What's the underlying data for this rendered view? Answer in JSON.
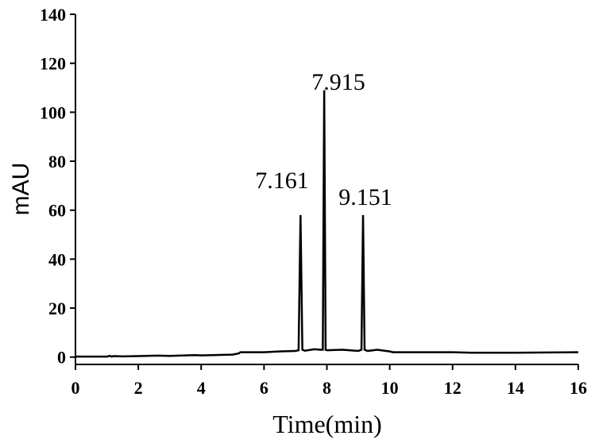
{
  "chart_data": {
    "type": "line",
    "xlabel": "Time(min)",
    "ylabel": "mAU",
    "annotations": [
      "7.161",
      "7.915",
      "9.151"
    ],
    "series": [
      {
        "color": "#000000",
        "x": [
          0,
          1.0,
          1.1,
          1.15,
          1.2,
          1.5,
          2.0,
          2.6,
          3.0,
          3.8,
          4.0,
          5.0,
          5.2,
          5.25,
          6.0,
          6.5,
          7.0,
          7.1,
          7.161,
          7.22,
          7.3,
          7.6,
          7.8,
          7.87,
          7.915,
          7.96,
          8.0,
          8.5,
          9.0,
          9.1,
          9.151,
          9.2,
          9.3,
          9.6,
          10.0,
          10.1,
          12.0,
          12.6,
          14.0,
          16.0
        ],
        "values": [
          0.2,
          0.2,
          0.5,
          0.2,
          0.4,
          0.3,
          0.4,
          0.6,
          0.5,
          0.8,
          0.7,
          1.0,
          1.5,
          2.0,
          2.0,
          2.3,
          2.5,
          2.8,
          58,
          3.0,
          2.6,
          3.2,
          3.0,
          3.0,
          109,
          3.0,
          2.8,
          3.0,
          2.5,
          3.0,
          58,
          3.0,
          2.5,
          3.0,
          2.3,
          2.0,
          2.0,
          1.8,
          1.8,
          2.0
        ]
      }
    ],
    "xlim": [
      0,
      16
    ],
    "xticks": [
      0,
      2,
      4,
      6,
      8,
      10,
      12,
      14,
      16
    ],
    "ylim": [
      -3,
      140
    ],
    "yticks": [
      0,
      20,
      40,
      60,
      80,
      100,
      120,
      140
    ]
  }
}
